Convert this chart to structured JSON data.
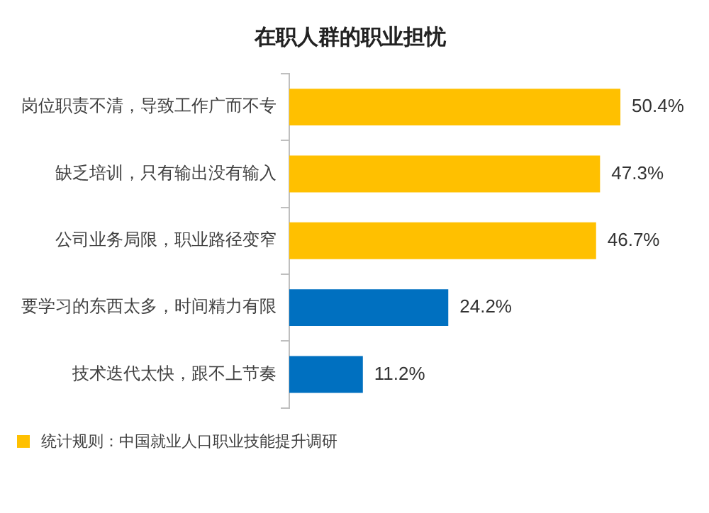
{
  "chart_data": {
    "type": "bar",
    "orientation": "horizontal",
    "title": "在职人群的职业担忧",
    "categories": [
      "岗位职责不清，导致工作广而不专",
      "缺乏培训，只有输出没有输入",
      "公司业务局限，职业路径变窄",
      "要学习的东西太多，时间精力有限",
      "技术迭代太快，跟不上节奏"
    ],
    "values": [
      50.4,
      47.3,
      46.7,
      24.2,
      11.2
    ],
    "value_labels": [
      "50.4%",
      "47.3%",
      "46.7%",
      "24.2%",
      "11.2%"
    ],
    "colors": [
      "#ffc000",
      "#ffc000",
      "#ffc000",
      "#0070c0",
      "#0070c0"
    ],
    "legend": false,
    "annotations": [
      "统计规则：中国就业人口职业技能提升调研"
    ]
  }
}
